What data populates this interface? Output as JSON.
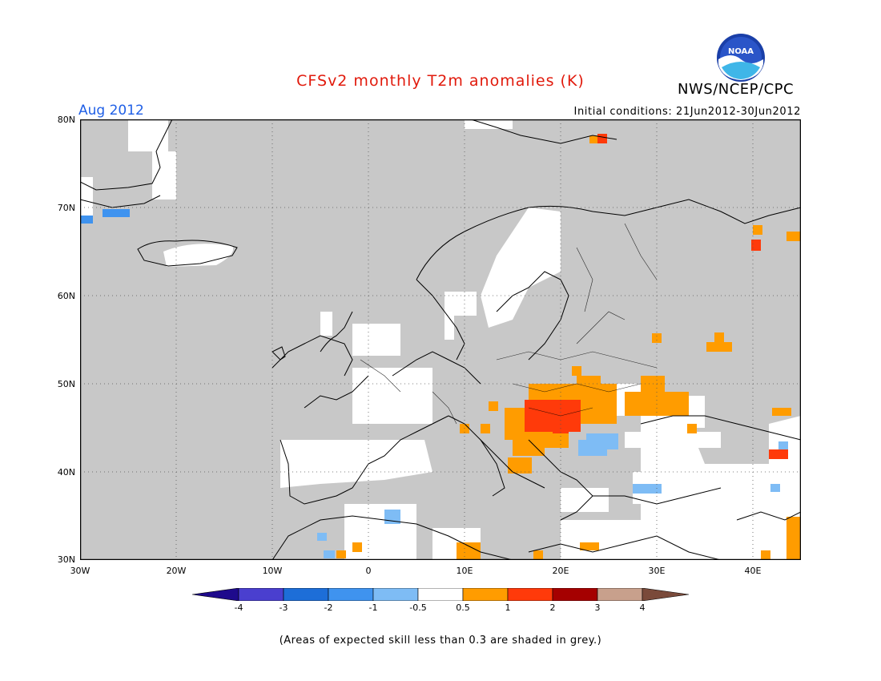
{
  "title": "CFSv2 monthly T2m anomalies (K)",
  "agency": "NWS/NCEP/CPC",
  "logo_text": "NOAA",
  "valid_month": "Aug 2012",
  "initial_conditions": "Initial conditions: 21Jun2012-30Jun2012",
  "footnote": "(Areas of expected skill less than 0.3 are shaded in grey.)",
  "map": {
    "lat_labels": [
      "80N",
      "70N",
      "60N",
      "50N",
      "40N",
      "30N"
    ],
    "lon_labels": [
      "30W",
      "20W",
      "10W",
      "0",
      "10E",
      "20E",
      "30E",
      "40E"
    ],
    "colors": {
      "grey": "#c8c8c8",
      "land_outline": "#000000"
    }
  },
  "colorbar": {
    "labels": [
      "-4",
      "-3",
      "-2",
      "-1",
      "-0.5",
      "0.5",
      "1",
      "2",
      "3",
      "4"
    ],
    "colors": [
      "#1e0a8c",
      "#4a3fcf",
      "#1d6ed8",
      "#3f93ef",
      "#7ebcf5",
      "#ffffff",
      "#ff9c00",
      "#ff3a0a",
      "#a50000",
      "#c8a08c",
      "#7a4a3a"
    ]
  },
  "anomalies": {
    "orange_regions": [
      "Hungary/Balkans",
      "western Russia",
      "Black Sea",
      "Caucasus",
      "Italy",
      "North Africa coast"
    ],
    "red_regions": [
      "Hungary/Serbia",
      "Caucasus",
      "Svalbard",
      "northern Russia"
    ],
    "blue_regions": [
      "Greenland coast",
      "Turkey",
      "Algeria",
      "Bulgaria"
    ]
  }
}
